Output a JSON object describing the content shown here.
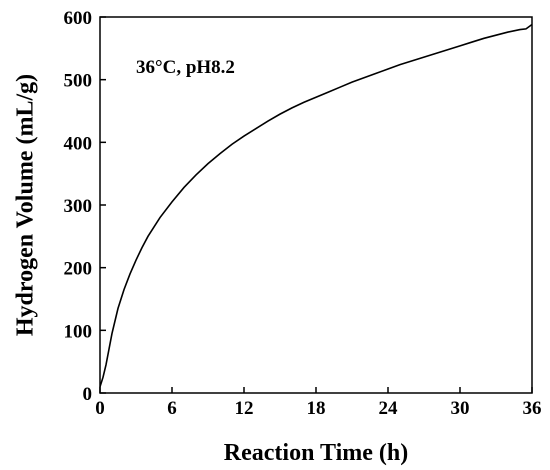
{
  "chart_data": {
    "type": "line",
    "title": "",
    "xlabel": "Reaction Time (h)",
    "ylabel": "Hydrogen Volume (mL/g)",
    "xlim": [
      0,
      36
    ],
    "ylim": [
      0,
      600
    ],
    "x_ticks": [
      0,
      6,
      12,
      18,
      24,
      30,
      36
    ],
    "y_ticks": [
      0,
      100,
      200,
      300,
      400,
      500,
      600
    ],
    "grid": false,
    "legend": "none",
    "annotation": "36°C, pH8.2",
    "line_color": "#000000",
    "series": [
      {
        "x": [
          0,
          0.25,
          0.5,
          0.75,
          1,
          1.5,
          2,
          2.5,
          3,
          3.5,
          4,
          5,
          6,
          7,
          8,
          9,
          10,
          11,
          12,
          13,
          14,
          15,
          16,
          17,
          18,
          19,
          20,
          21,
          22,
          23,
          24,
          25,
          26,
          27,
          28,
          29,
          30,
          31,
          32,
          33,
          34,
          35,
          35.5,
          36
        ],
        "values": [
          10,
          25,
          45,
          70,
          95,
          135,
          165,
          190,
          212,
          232,
          250,
          280,
          305,
          328,
          348,
          366,
          382,
          397,
          410,
          422,
          434,
          445,
          455,
          464,
          472,
          480,
          488,
          496,
          503,
          510,
          517,
          524,
          530,
          536,
          542,
          548,
          554,
          560,
          566,
          571,
          576,
          580,
          581,
          588
        ]
      }
    ]
  }
}
